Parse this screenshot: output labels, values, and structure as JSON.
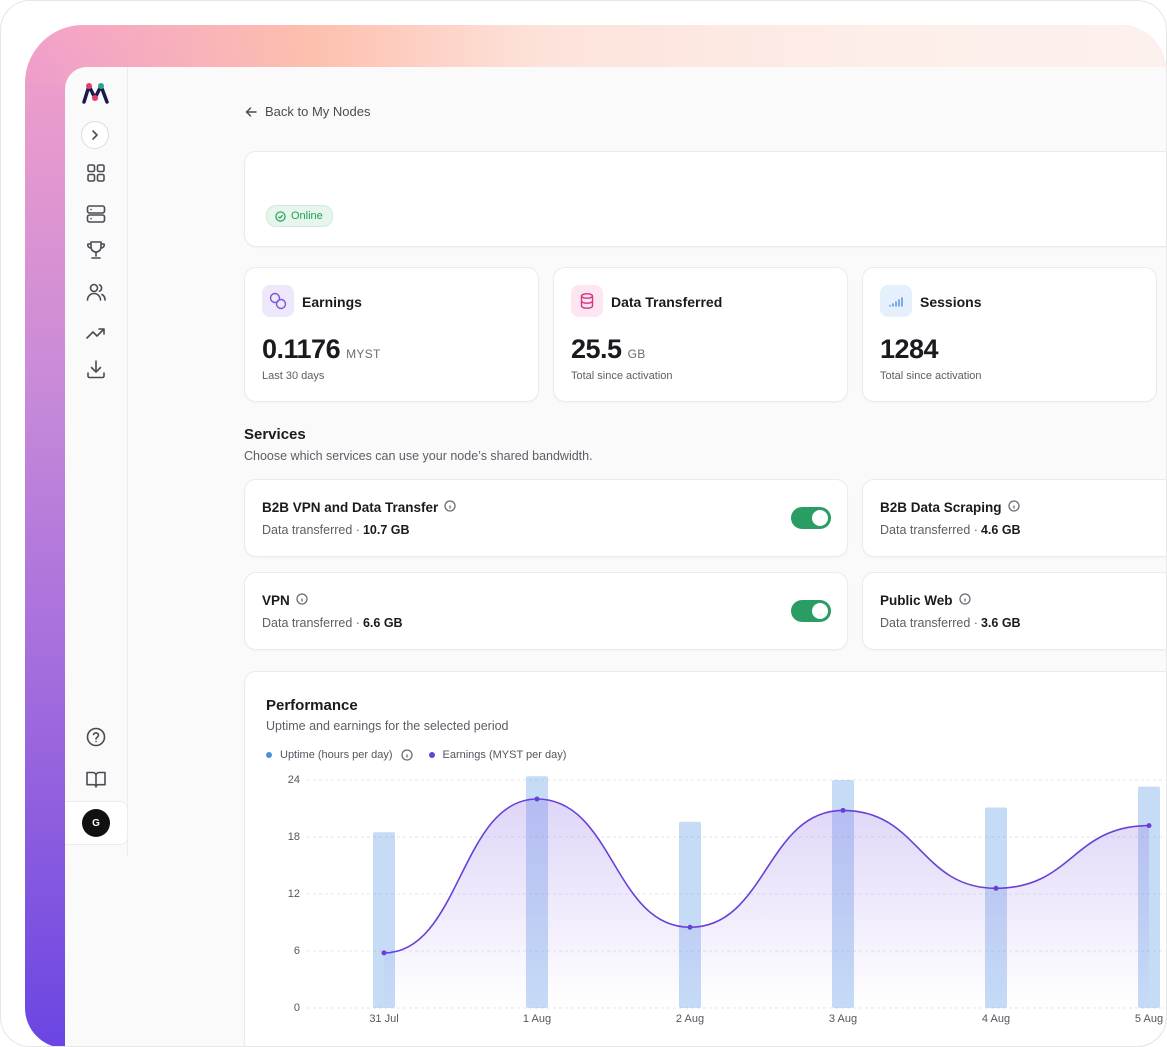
{
  "nav": {
    "back": "Back to My Nodes"
  },
  "node": {
    "status": "Online"
  },
  "stats": [
    {
      "title": "Earnings",
      "value": 0.1176,
      "unit": "MYST",
      "note": "Last 30 days"
    },
    {
      "title": "Data Transferred",
      "value": 25.5,
      "unit": "GB",
      "note": "Total since activation"
    },
    {
      "title": "Sessions",
      "value": 1284,
      "note": "Total since activation"
    }
  ],
  "services": {
    "title": "Services",
    "subtitle": "Choose which services can use your node’s shared bandwidth.",
    "items": [
      {
        "name": "B2B VPN and Data Transfer",
        "label": "Data transferred ·",
        "amount": "10.7 GB",
        "enabled": true
      },
      {
        "name": "B2B Data Scraping",
        "label": "Data transferred ·",
        "amount": "4.6 GB"
      },
      {
        "name": "VPN",
        "label": "Data transferred ·",
        "amount": "6.6 GB",
        "enabled": true
      },
      {
        "name": "Public Web",
        "label": "Data transferred ·",
        "amount": "3.6 GB"
      }
    ]
  },
  "performance": {
    "title": "Performance",
    "subtitle": "Uptime and earnings for the selected period"
  },
  "user": {
    "initial": "G"
  },
  "chart_data": {
    "type": "bar",
    "categories": [
      "31 Jul",
      "1 Aug",
      "2 Aug",
      "3 Aug",
      "4 Aug",
      "5 Aug"
    ],
    "series": [
      {
        "name": "Uptime (hours per day)",
        "type": "bar",
        "color": "#4a90e2",
        "values": [
          18.5,
          24.4,
          19.6,
          24.0,
          21.1,
          23.3
        ]
      },
      {
        "name": "Earnings (MYST per day)",
        "type": "line",
        "color": "#6a3fd8",
        "values": [
          5.8,
          22.0,
          8.5,
          20.8,
          12.6,
          19.2
        ]
      }
    ],
    "ylim": [
      0,
      25
    ],
    "yticks": [
      0,
      6,
      12,
      18,
      24
    ],
    "grid": true
  }
}
